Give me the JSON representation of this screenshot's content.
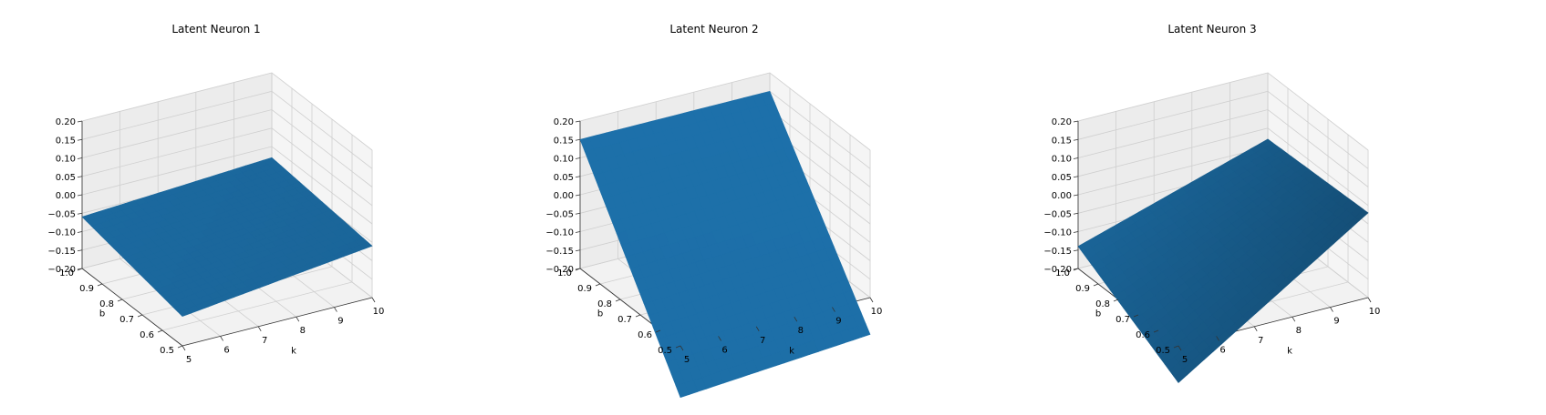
{
  "chart_data": [
    {
      "type": "surface3d",
      "title": "Latent Neuron 1",
      "xlabel": "k",
      "ylabel": "b",
      "zlabel": "",
      "xlim": [
        5,
        10
      ],
      "ylim": [
        0.5,
        1.0
      ],
      "zlim": [
        -0.2,
        0.2
      ],
      "x_ticks": [
        5,
        6,
        7,
        8,
        9,
        10
      ],
      "y_ticks": [
        0.5,
        0.6,
        0.7,
        0.8,
        0.9,
        1.0
      ],
      "z_ticks": [
        -0.2,
        -0.15,
        -0.1,
        -0.05,
        0.0,
        0.05,
        0.1,
        0.15,
        0.2
      ],
      "grid": true,
      "color": "#1f77b4",
      "surface": {
        "k": [
          5,
          10
        ],
        "b": [
          0.5,
          1.0
        ],
        "z": [
          [
            -0.12,
            -0.06
          ],
          [
            -0.06,
            -0.03
          ]
        ]
      }
    },
    {
      "type": "surface3d",
      "title": "Latent Neuron 2",
      "xlabel": "k",
      "ylabel": "b",
      "zlabel": "",
      "xlim": [
        5,
        10
      ],
      "ylim": [
        0.5,
        1.0
      ],
      "zlim": [
        -0.2,
        0.2
      ],
      "x_ticks": [
        5,
        6,
        7,
        8,
        9,
        10
      ],
      "y_ticks": [
        0.5,
        0.6,
        0.7,
        0.8,
        0.9,
        1.0
      ],
      "z_ticks": [
        -0.2,
        -0.15,
        -0.1,
        -0.05,
        0.0,
        0.05,
        0.1,
        0.15,
        0.2
      ],
      "grid": true,
      "color": "#1f77b4",
      "surface": {
        "k": [
          5,
          10
        ],
        "b": [
          0.5,
          1.0
        ],
        "z": [
          [
            -0.34,
            0.15
          ],
          [
            -0.3,
            0.15
          ]
        ]
      }
    },
    {
      "type": "surface3d",
      "title": "Latent Neuron 3",
      "xlabel": "k",
      "ylabel": "b",
      "zlabel": "",
      "xlim": [
        5,
        10
      ],
      "ylim": [
        0.5,
        1.0
      ],
      "zlim": [
        -0.2,
        0.2
      ],
      "x_ticks": [
        5,
        6,
        7,
        8,
        9,
        10
      ],
      "y_ticks": [
        0.5,
        0.6,
        0.7,
        0.8,
        0.9,
        1.0
      ],
      "z_ticks": [
        -0.2,
        -0.15,
        -0.1,
        -0.05,
        0.0,
        0.05,
        0.1,
        0.15,
        0.2
      ],
      "grid": true,
      "color": "#1f77b4",
      "surface": {
        "k": [
          5,
          10
        ],
        "b": [
          0.5,
          1.0
        ],
        "z": [
          [
            -0.3,
            -0.14
          ],
          [
            0.03,
            0.02
          ]
        ]
      }
    }
  ]
}
